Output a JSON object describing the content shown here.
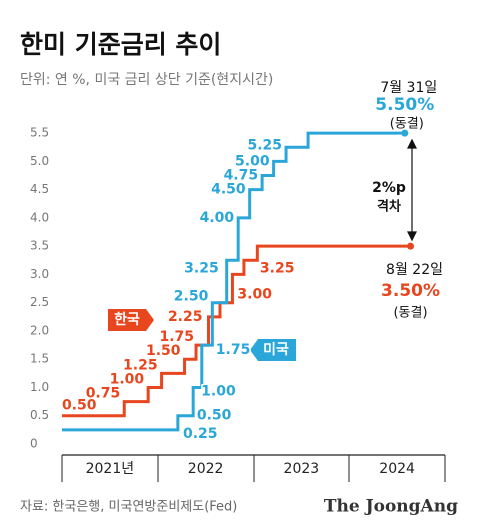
{
  "chart_data": {
    "type": "step",
    "title": "한미 기준금리 추이",
    "subtitle": "단위: 연 %, 미국 금리 상단 기준(현지시간)",
    "source": "자료: 한국은행, 미국연방준비제도(Fed)",
    "brand": "The JoongAng",
    "xlim": [
      2021,
      2025
    ],
    "xticks": [
      {
        "value": 2021.5,
        "label": "2021년"
      },
      {
        "value": 2022.5,
        "label": "2022"
      },
      {
        "value": 2023.5,
        "label": "2023"
      },
      {
        "value": 2024.5,
        "label": "2024"
      }
    ],
    "ylim": [
      0,
      5.75
    ],
    "yticks": [
      0,
      0.5,
      {
        "value": 1,
        "label": "1.0"
      },
      1.5,
      {
        "value": 2,
        "label": "2.0"
      },
      2.5,
      {
        "value": 3,
        "label": "3.0"
      },
      3.5,
      {
        "value": 4,
        "label": "4.0"
      },
      4.5,
      {
        "value": 5,
        "label": "5.0"
      },
      5.5
    ],
    "series": [
      {
        "name": "한국",
        "color": "#e8461e",
        "x": [
          2021.0,
          2021.65,
          2021.9,
          2022.04,
          2022.28,
          2022.4,
          2022.53,
          2022.65,
          2022.78,
          2022.9,
          2023.04,
          2024.64
        ],
        "values": [
          0.5,
          0.75,
          1,
          1.25,
          1.5,
          1.75,
          2.25,
          2.5,
          3,
          3.25,
          3.5,
          3.5
        ],
        "value_labels": [
          "0.50",
          "0.75",
          "1.00",
          "1.25",
          "1.50",
          "1.75",
          "2.25",
          null,
          "3.00",
          "3.25",
          null,
          "3.50%"
        ],
        "end_date": "8월 22일",
        "end_note": "(동결)"
      },
      {
        "name": "미국",
        "color": "#2aa7d8",
        "x": [
          2021.0,
          2022.21,
          2022.37,
          2022.46,
          2022.57,
          2022.72,
          2022.84,
          2022.96,
          2023.09,
          2023.21,
          2023.34,
          2023.57,
          2024.58
        ],
        "values": [
          0.25,
          0.5,
          1,
          1.75,
          2.5,
          3.25,
          4,
          4.5,
          4.75,
          5,
          5.25,
          5.5,
          5.5
        ],
        "value_labels": [
          "0.25",
          "0.50",
          "1.00",
          "1.75",
          "2.50",
          "3.25",
          "4.00",
          "4.50",
          "4.75",
          "5.00",
          "5.25",
          null,
          "5.50%"
        ],
        "end_date": "7월 31일",
        "end_note": "(동결)"
      }
    ],
    "annotations": {
      "gap": [
        "2%p",
        "격차"
      ]
    }
  }
}
